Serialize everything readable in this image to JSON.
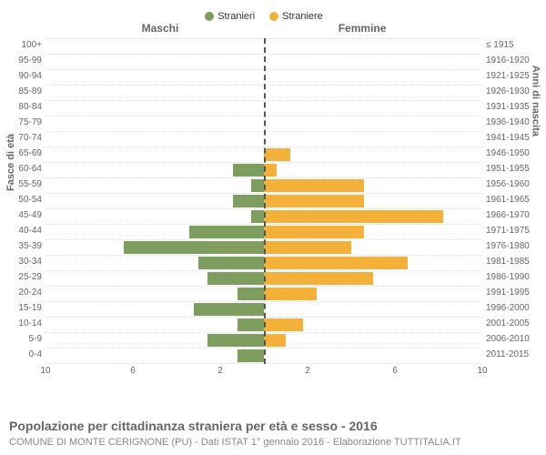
{
  "chart": {
    "type": "population-pyramid",
    "legend": [
      {
        "label": "Stranieri",
        "color": "#7d9e5e"
      },
      {
        "label": "Straniere",
        "color": "#f3b13a"
      }
    ],
    "header_left": "Maschi",
    "header_right": "Femmine",
    "yaxis_left_title": "Fasce di età",
    "yaxis_right_title": "Anni di nascita",
    "xmax": 10,
    "xticks_left": [
      10,
      6,
      2
    ],
    "xticks_right": [
      2,
      6,
      10
    ],
    "male_color": "#7d9e5e",
    "female_color": "#f3b13a",
    "grid_color": "#e0e0e0",
    "background_color": "#ffffff",
    "label_fontsize": 10,
    "title_fontsize": 14,
    "rows": [
      {
        "age": "100+",
        "birth": "≤ 1915",
        "m": 0,
        "f": 0
      },
      {
        "age": "95-99",
        "birth": "1916-1920",
        "m": 0,
        "f": 0
      },
      {
        "age": "90-94",
        "birth": "1921-1925",
        "m": 0,
        "f": 0
      },
      {
        "age": "85-89",
        "birth": "1926-1930",
        "m": 0,
        "f": 0
      },
      {
        "age": "80-84",
        "birth": "1931-1935",
        "m": 0,
        "f": 0
      },
      {
        "age": "75-79",
        "birth": "1936-1940",
        "m": 0,
        "f": 0
      },
      {
        "age": "70-74",
        "birth": "1941-1945",
        "m": 0,
        "f": 0
      },
      {
        "age": "65-69",
        "birth": "1946-1950",
        "m": 0,
        "f": 1.2
      },
      {
        "age": "60-64",
        "birth": "1951-1955",
        "m": 1.4,
        "f": 0.6
      },
      {
        "age": "55-59",
        "birth": "1956-1960",
        "m": 0.6,
        "f": 4.6
      },
      {
        "age": "50-54",
        "birth": "1961-1965",
        "m": 1.4,
        "f": 4.6
      },
      {
        "age": "45-49",
        "birth": "1966-1970",
        "m": 0.6,
        "f": 8.2
      },
      {
        "age": "40-44",
        "birth": "1971-1975",
        "m": 3.4,
        "f": 4.6
      },
      {
        "age": "35-39",
        "birth": "1976-1980",
        "m": 6.4,
        "f": 4.0
      },
      {
        "age": "30-34",
        "birth": "1981-1985",
        "m": 3.0,
        "f": 6.6
      },
      {
        "age": "25-29",
        "birth": "1986-1990",
        "m": 2.6,
        "f": 5.0
      },
      {
        "age": "20-24",
        "birth": "1991-1995",
        "m": 1.2,
        "f": 2.4
      },
      {
        "age": "15-19",
        "birth": "1996-2000",
        "m": 3.2,
        "f": 0
      },
      {
        "age": "10-14",
        "birth": "2001-2005",
        "m": 1.2,
        "f": 1.8
      },
      {
        "age": "5-9",
        "birth": "2006-2010",
        "m": 2.6,
        "f": 1.0
      },
      {
        "age": "0-4",
        "birth": "2011-2015",
        "m": 1.2,
        "f": 0
      }
    ]
  },
  "caption": "Popolazione per cittadinanza straniera per età e sesso - 2016",
  "subcaption": "COMUNE DI MONTE CERIGNONE (PU) - Dati ISTAT 1° gennaio 2016 - Elaborazione TUTTITALIA.IT"
}
